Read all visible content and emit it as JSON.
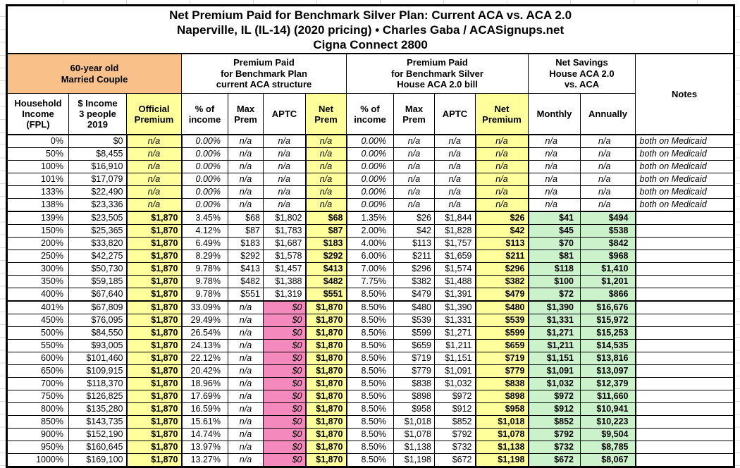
{
  "title": {
    "line1": "Net Premium Paid for Benchmark Silver Plan: Current ACA vs. ACA 2.0",
    "line2": "Naperville, IL (IL-14) (2020 pricing) • Charles Gaba / ACASignups.net",
    "line3": "Cigna Connect 2800"
  },
  "colors": {
    "yellow_highlight": "#FFFF9C",
    "orange_header": "#F9C089",
    "pink_zero_aptc": "#F389BC",
    "green_savings": "#CCF2CC",
    "grid_black": "#000000"
  },
  "header": {
    "groups": {
      "population": "60-year old\nMarried Couple",
      "current_aca": "Premium Paid\nfor Benchmark Plan\ncurrent ACA structure",
      "aca2": "Premium Paid\nfor Benchmark Silver\nHouse ACA 2.0 bill",
      "savings": "Net Savings\nHouse ACA 2.0\nvs. ACA"
    },
    "notes_label": "Notes",
    "columns": [
      "Household\nIncome\n(FPL)",
      "$ Income\n3 people\n2019",
      "Official\nPremium",
      "% of\nincome",
      "Max\nPrem",
      "APTC",
      "Net\nPrem",
      "% of\nincome",
      "Max\nPrem",
      "APTC",
      "Net\nPremium",
      "Monthly",
      "Annually"
    ]
  },
  "table": {
    "column_names": [
      "fpl",
      "income",
      "official-premium",
      "aca-pct-income",
      "aca-max-prem",
      "aca-aptc",
      "aca-net-prem",
      "aca2-pct-income",
      "aca2-max-prem",
      "aca2-aptc",
      "aca2-net-premium",
      "savings-monthly",
      "savings-annually",
      "notes"
    ],
    "rows": [
      [
        "0%",
        "$0",
        "n/a",
        "0.00%",
        "n/a",
        "n/a",
        "n/a",
        "0.00%",
        "n/a",
        "n/a",
        "n/a",
        "n/a",
        "n/a",
        "both on Medicaid"
      ],
      [
        "50%",
        "$8,455",
        "n/a",
        "0.00%",
        "n/a",
        "n/a",
        "n/a",
        "0.00%",
        "n/a",
        "n/a",
        "n/a",
        "n/a",
        "n/a",
        "both on Medicaid"
      ],
      [
        "100%",
        "$16,910",
        "n/a",
        "0.00%",
        "n/a",
        "n/a",
        "n/a",
        "0.00%",
        "n/a",
        "n/a",
        "n/a",
        "n/a",
        "n/a",
        "both on Medicaid"
      ],
      [
        "101%",
        "$17,079",
        "n/a",
        "0.00%",
        "n/a",
        "n/a",
        "n/a",
        "0.00%",
        "n/a",
        "n/a",
        "n/a",
        "n/a",
        "n/a",
        "both on Medicaid"
      ],
      [
        "133%",
        "$22,490",
        "n/a",
        "0.00%",
        "n/a",
        "n/a",
        "n/a",
        "0.00%",
        "n/a",
        "n/a",
        "n/a",
        "n/a",
        "n/a",
        "both on Medicaid"
      ],
      [
        "138%",
        "$23,336",
        "n/a",
        "0.00%",
        "n/a",
        "n/a",
        "n/a",
        "0.00%",
        "n/a",
        "n/a",
        "n/a",
        "n/a",
        "n/a",
        "both on Medicaid"
      ],
      [
        "139%",
        "$23,505",
        "$1,870",
        "3.45%",
        "$68",
        "$1,802",
        "$68",
        "1.35%",
        "$26",
        "$1,844",
        "$26",
        "$41",
        "$494",
        ""
      ],
      [
        "150%",
        "$25,365",
        "$1,870",
        "4.12%",
        "$87",
        "$1,783",
        "$87",
        "2.00%",
        "$42",
        "$1,828",
        "$42",
        "$45",
        "$538",
        ""
      ],
      [
        "200%",
        "$33,820",
        "$1,870",
        "6.49%",
        "$183",
        "$1,687",
        "$183",
        "4.00%",
        "$113",
        "$1,757",
        "$113",
        "$70",
        "$842",
        ""
      ],
      [
        "250%",
        "$42,275",
        "$1,870",
        "8.29%",
        "$292",
        "$1,578",
        "$292",
        "6.00%",
        "$211",
        "$1,659",
        "$211",
        "$81",
        "$968",
        ""
      ],
      [
        "300%",
        "$50,730",
        "$1,870",
        "9.78%",
        "$413",
        "$1,457",
        "$413",
        "7.00%",
        "$296",
        "$1,574",
        "$296",
        "$118",
        "$1,410",
        ""
      ],
      [
        "350%",
        "$59,185",
        "$1,870",
        "9.78%",
        "$482",
        "$1,388",
        "$482",
        "7.75%",
        "$382",
        "$1,488",
        "$382",
        "$100",
        "$1,201",
        ""
      ],
      [
        "400%",
        "$67,640",
        "$1,870",
        "9.78%",
        "$551",
        "$1,319",
        "$551",
        "8.50%",
        "$479",
        "$1,391",
        "$479",
        "$72",
        "$866",
        ""
      ],
      [
        "401%",
        "$67,809",
        "$1,870",
        "33.09%",
        "n/a",
        "$0",
        "$1,870",
        "8.50%",
        "$480",
        "$1,390",
        "$480",
        "$1,390",
        "$16,676",
        ""
      ],
      [
        "450%",
        "$76,095",
        "$1,870",
        "29.49%",
        "n/a",
        "$0",
        "$1,870",
        "8.50%",
        "$539",
        "$1,331",
        "$539",
        "$1,331",
        "$15,972",
        ""
      ],
      [
        "500%",
        "$84,550",
        "$1,870",
        "26.54%",
        "n/a",
        "$0",
        "$1,870",
        "8.50%",
        "$599",
        "$1,271",
        "$599",
        "$1,271",
        "$15,253",
        ""
      ],
      [
        "550%",
        "$93,005",
        "$1,870",
        "24.13%",
        "n/a",
        "$0",
        "$1,870",
        "8.50%",
        "$659",
        "$1,211",
        "$659",
        "$1,211",
        "$14,535",
        ""
      ],
      [
        "600%",
        "$101,460",
        "$1,870",
        "22.12%",
        "n/a",
        "$0",
        "$1,870",
        "8.50%",
        "$719",
        "$1,151",
        "$719",
        "$1,151",
        "$13,816",
        ""
      ],
      [
        "650%",
        "$109,915",
        "$1,870",
        "20.42%",
        "n/a",
        "$0",
        "$1,870",
        "8.50%",
        "$779",
        "$1,091",
        "$779",
        "$1,091",
        "$13,097",
        ""
      ],
      [
        "700%",
        "$118,370",
        "$1,870",
        "18.96%",
        "n/a",
        "$0",
        "$1,870",
        "8.50%",
        "$838",
        "$1,032",
        "$838",
        "$1,032",
        "$12,379",
        ""
      ],
      [
        "750%",
        "$126,825",
        "$1,870",
        "17.69%",
        "n/a",
        "$0",
        "$1,870",
        "8.50%",
        "$898",
        "$972",
        "$898",
        "$972",
        "$11,660",
        ""
      ],
      [
        "800%",
        "$135,280",
        "$1,870",
        "16.59%",
        "n/a",
        "$0",
        "$1,870",
        "8.50%",
        "$958",
        "$912",
        "$958",
        "$912",
        "$10,941",
        ""
      ],
      [
        "850%",
        "$143,735",
        "$1,870",
        "15.61%",
        "n/a",
        "$0",
        "$1,870",
        "8.50%",
        "$1,018",
        "$852",
        "$1,018",
        "$852",
        "$10,223",
        ""
      ],
      [
        "900%",
        "$152,190",
        "$1,870",
        "14.74%",
        "n/a",
        "$0",
        "$1,870",
        "8.50%",
        "$1,078",
        "$792",
        "$1,078",
        "$792",
        "$9,504",
        ""
      ],
      [
        "950%",
        "$160,645",
        "$1,870",
        "13.97%",
        "n/a",
        "$0",
        "$1,870",
        "8.50%",
        "$1,138",
        "$732",
        "$1,138",
        "$732",
        "$8,785",
        ""
      ],
      [
        "1000%",
        "$169,100",
        "$1,870",
        "13.27%",
        "n/a",
        "$0",
        "$1,870",
        "8.50%",
        "$1,198",
        "$672",
        "$1,198",
        "$672",
        "$8,067",
        ""
      ]
    ]
  }
}
